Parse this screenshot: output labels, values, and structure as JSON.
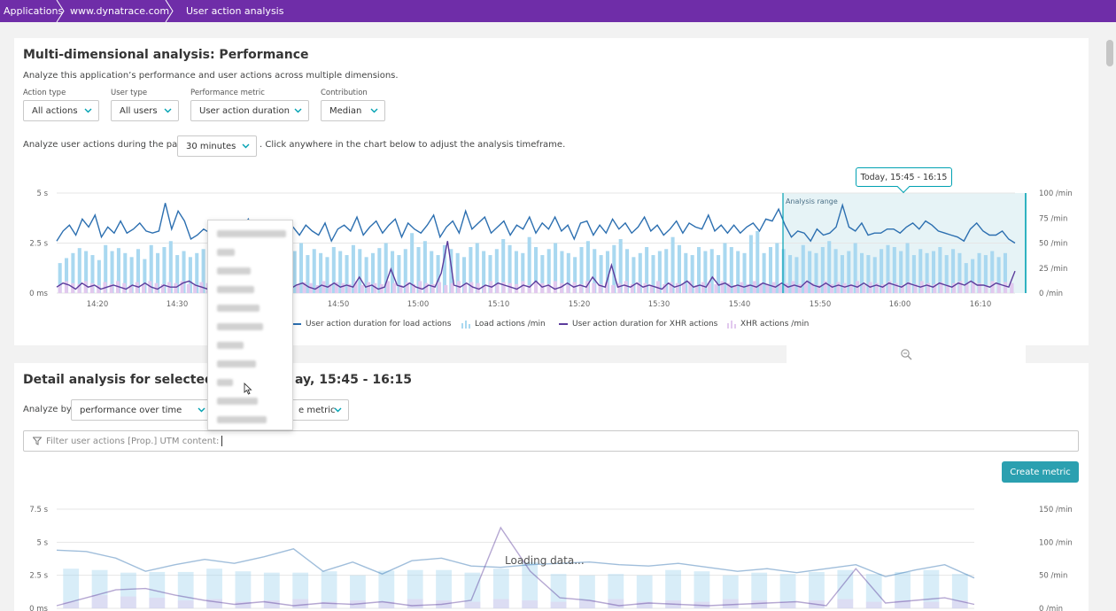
{
  "breadcrumb": [
    "Applications",
    "www.dynatrace.com",
    "User action analysis"
  ],
  "top": {
    "title": "Multi-dimensional analysis: Performance",
    "description": "Analyze this application’s performance and user actions across multiple dimensions.",
    "filters": [
      {
        "label": "Action type",
        "value": "All actions"
      },
      {
        "label": "User type",
        "value": "All users"
      },
      {
        "label": "Performance metric",
        "value": "User action duration"
      },
      {
        "label": "Contribution",
        "value": "Median"
      }
    ],
    "timeframe_prefix": "Analyze user actions during the past",
    "timeframe_value": "30 minutes",
    "timeframe_suffix": ". Click anywhere in the chart below to adjust the analysis timeframe."
  },
  "tooltip": "Today, 15:45 - 16:15",
  "dropdown_item_count": 11,
  "bottom": {
    "title_left": "Detail analysis for selected ti",
    "title_right": "ay, 15:45 - 16:15",
    "analyze_by_label": "Analyze by",
    "analyze_by_value": "performance over time",
    "metric_value": "e metric",
    "filter_text": "Filter user actions  [Prop.] UTM content:",
    "create_metric": "Create metric",
    "loading": "Loading data..."
  },
  "colors": {
    "header": "#6f2da8",
    "load_line": "#2c6fb0",
    "load_bars": "#a9d8f0",
    "xhr_line": "#5c3c9c",
    "xhr_bars": "#e2c9ee",
    "accent": "#00a1b2",
    "button": "#2ba0b0"
  },
  "chart_data": [
    {
      "type": "bar",
      "title": "",
      "ylabel_left": "",
      "y_left_ticks": [
        "5 s",
        "2.5 s",
        "0 ms"
      ],
      "y_right_ticks": [
        "100 /min",
        "75 /min",
        "50 /min",
        "25 /min",
        "0 /min"
      ],
      "x_ticks": [
        "14:20",
        "14:30",
        "14:40",
        "14:50",
        "15:00",
        "15:10",
        "15:20",
        "15:30",
        "15:40",
        "15:50",
        "16:00",
        "16:10"
      ],
      "ylim_left": [
        0,
        5
      ],
      "ylim_right": [
        0,
        100
      ],
      "analysis_range_label": "Analysis range",
      "analysis_range": [
        "15:45",
        "16:15"
      ],
      "legend": [
        "User action duration for load actions",
        "Load actions /min",
        "User action duration for XHR actions",
        "XHR actions /min"
      ],
      "series": [
        {
          "name": "User action duration for load actions",
          "kind": "line",
          "axis": "left",
          "values": [
            2.6,
            3.1,
            3.4,
            2.9,
            3.7,
            3.3,
            3.9,
            2.8,
            3.3,
            3.0,
            3.6,
            3.0,
            3.2,
            3.5,
            3.1,
            3.0,
            3.1,
            4.5,
            3.2,
            4.1,
            3.6,
            2.7,
            2.9,
            3.2,
            3.0,
            3.2,
            3.6,
            2.9,
            3.1,
            3.3,
            3.7,
            2.9,
            3.2,
            3.4,
            3.0,
            3.6,
            3.1,
            3.3,
            2.9,
            3.4,
            3.1,
            2.9,
            3.5,
            2.6,
            3.2,
            3.4,
            3.1,
            3.8,
            2.9,
            3.3,
            3.6,
            3.0,
            3.4,
            3.7,
            2.8,
            3.5,
            3.2,
            3.0,
            3.4,
            3.9,
            2.8,
            3.3,
            3.6,
            3.0,
            4.1,
            3.2,
            3.5,
            3.8,
            3.0,
            3.3,
            3.6,
            2.9,
            3.4,
            3.2,
            3.8,
            3.0,
            3.5,
            3.2,
            3.8,
            3.1,
            3.4,
            2.7,
            3.5,
            3.6,
            2.9,
            3.4,
            3.0,
            3.7,
            3.2,
            3.5,
            3.0,
            3.3,
            3.8,
            3.1,
            3.4,
            2.9,
            3.2,
            3.6,
            3.0,
            3.5,
            3.3,
            3.2,
            3.9,
            3.1,
            3.4,
            3.0,
            3.4,
            3.0,
            3.3,
            3.5,
            3.1,
            3.7,
            3.6,
            4.2,
            3.4,
            2.8,
            3.1,
            3.0,
            2.6,
            3.2,
            2.9,
            3.0,
            3.3,
            4.4,
            3.3,
            3.1,
            3.5,
            2.9,
            3.0,
            3.0,
            3.2,
            3.2,
            3.0,
            3.3,
            3.5,
            3.2,
            3.6,
            3.4,
            3.1,
            3.0,
            2.9,
            2.8,
            2.6,
            3.2,
            3.5,
            3.1,
            2.9,
            2.9,
            3.1,
            2.7,
            2.5
          ]
        },
        {
          "name": "Load actions /min",
          "kind": "bar",
          "axis": "right",
          "values": [
            30,
            35,
            40,
            45,
            42,
            38,
            33,
            48,
            42,
            45,
            40,
            36,
            44,
            34,
            48,
            40,
            46,
            52,
            38,
            42,
            36,
            40,
            44,
            38,
            34,
            42,
            46,
            40,
            38,
            44,
            36,
            48,
            40,
            38,
            45,
            36,
            42,
            50,
            38,
            44,
            40,
            36,
            46,
            42,
            38,
            48,
            44,
            36,
            40,
            45,
            50,
            42,
            38,
            44,
            60,
            46,
            52,
            42,
            38,
            48,
            44,
            40,
            36,
            46,
            50,
            42,
            38,
            44,
            54,
            48,
            42,
            40,
            56,
            46,
            38,
            44,
            50,
            42,
            40,
            36,
            46,
            52,
            44,
            38,
            42,
            48,
            54,
            44,
            36,
            40,
            46,
            38,
            42,
            44,
            56,
            48,
            40,
            38,
            46,
            42,
            44,
            38,
            50,
            46,
            42,
            40,
            58,
            62,
            40,
            46,
            50,
            44,
            38,
            36,
            48,
            42,
            40,
            46,
            52,
            44,
            38,
            42,
            50,
            40,
            38,
            36,
            44,
            48,
            46,
            42,
            50,
            38,
            44,
            40,
            42,
            46,
            38,
            44,
            40,
            30,
            34,
            40,
            38,
            42,
            36,
            40,
            10
          ]
        },
        {
          "name": "User action duration for XHR actions",
          "kind": "line",
          "axis": "left",
          "values": [
            0.3,
            0.5,
            0.4,
            0.2,
            0.5,
            0.3,
            0.4,
            0.2,
            0.3,
            0.4,
            0.3,
            0.2,
            0.4,
            0.3,
            0.5,
            0.3,
            0.2,
            0.4,
            0.3,
            0.3,
            0.5,
            0.6,
            0.4,
            0.3,
            0.2,
            0.6,
            2.6,
            0.5,
            0.3,
            0.4,
            0.3,
            0.2,
            0.4,
            0.3,
            0.3,
            0.5,
            0.3,
            0.2,
            0.4,
            0.5,
            0.3,
            0.2,
            0.4,
            0.3,
            0.5,
            0.3,
            0.4,
            0.3,
            0.8,
            0.3,
            0.4,
            0.2,
            0.3,
            1.2,
            0.4,
            0.3,
            0.5,
            0.3,
            0.2,
            0.4,
            0.3,
            1.0,
            2.6,
            0.4,
            0.3,
            0.5,
            0.3,
            0.2,
            0.4,
            0.3,
            0.5,
            0.4,
            0.3,
            0.2,
            0.4,
            0.3,
            0.6,
            0.3,
            0.4,
            0.2,
            0.3,
            0.5,
            0.3,
            0.4,
            0.3,
            0.8,
            0.4,
            0.3,
            1.4,
            0.3,
            0.4,
            0.3,
            0.5,
            0.3,
            0.4,
            0.3,
            0.2,
            0.5,
            0.3,
            0.4,
            0.6,
            0.3,
            0.4,
            0.3,
            0.8,
            0.4,
            0.5,
            0.3,
            0.4,
            0.3,
            0.4,
            0.3,
            0.5,
            0.4,
            0.3,
            0.5,
            0.3,
            0.4,
            0.3,
            0.6,
            0.4,
            0.3,
            0.5,
            0.3,
            0.4,
            0.3,
            0.4,
            0.3,
            0.5,
            0.3,
            0.4,
            0.3,
            0.5,
            0.4,
            0.3,
            0.5,
            0.4,
            0.3,
            0.4,
            0.3,
            0.5,
            0.4,
            0.3,
            0.5,
            0.4,
            0.6,
            0.4,
            0.4,
            0.3,
            0.5,
            0.4,
            0.3,
            1.1
          ]
        },
        {
          "name": "XHR actions /min",
          "kind": "bar",
          "axis": "right",
          "values": [
            8,
            12,
            10,
            9,
            12,
            10,
            8,
            11,
            9,
            12,
            10,
            8,
            11,
            9,
            12,
            10,
            9,
            11,
            10,
            12,
            9,
            8,
            11,
            10,
            9,
            12,
            10,
            8,
            11,
            9,
            12,
            10,
            9,
            11,
            8,
            10,
            12,
            9,
            11,
            10,
            8,
            12,
            9,
            11,
            10,
            9,
            12,
            8,
            11,
            10,
            9,
            12,
            10,
            8,
            11,
            9,
            12,
            10,
            9,
            11,
            8,
            10,
            12,
            9,
            11,
            10,
            8,
            12,
            9,
            11,
            10,
            9,
            12,
            8,
            11,
            10,
            9,
            12,
            10,
            8,
            11,
            9,
            12,
            10,
            9,
            11,
            8,
            10,
            12,
            9,
            11,
            10,
            8,
            12,
            9,
            11,
            10,
            9,
            12,
            8,
            11,
            10,
            9,
            12,
            10,
            8,
            11,
            9,
            12,
            10,
            9,
            11,
            8,
            10,
            12,
            9,
            11,
            10,
            8,
            12,
            9,
            11,
            10,
            9,
            12,
            8,
            11,
            10,
            9,
            12,
            10,
            8,
            11,
            9,
            12,
            10,
            9,
            11,
            8,
            10,
            12,
            9,
            11,
            10,
            8,
            12,
            9,
            11,
            10
          ]
        }
      ]
    },
    {
      "type": "bar",
      "title": "",
      "y_left_ticks": [
        "7.5 s",
        "5 s",
        "2.5 s",
        "0 ms"
      ],
      "y_right_ticks": [
        "150 /min",
        "100 /min",
        "50 /min",
        "0 /min"
      ],
      "ylim_left": [
        0,
        7.5
      ],
      "ylim_right": [
        0,
        150
      ],
      "series": [
        {
          "name": "load_duration",
          "kind": "line",
          "axis": "left",
          "values": [
            4.4,
            4.3,
            3.8,
            2.8,
            3.3,
            3.7,
            3.4,
            3.9,
            4.5,
            2.8,
            3.5,
            2.6,
            3.6,
            3.8,
            3.2,
            3.1,
            3.3,
            3.4,
            3.5,
            3.3,
            3.2,
            3.4,
            3.1,
            2.8,
            3.0,
            2.7,
            3.0,
            3.3,
            2.4,
            2.9,
            3.3,
            2.3
          ]
        },
        {
          "name": "load_bars",
          "kind": "bar",
          "axis": "right",
          "values": [
            60,
            58,
            54,
            55,
            55,
            60,
            56,
            54,
            54,
            56,
            50,
            57,
            58,
            58,
            54,
            60,
            70,
            52,
            50,
            52,
            50,
            58,
            56,
            50,
            54,
            52,
            55,
            58,
            52,
            55,
            58,
            52
          ]
        },
        {
          "name": "xhr_duration",
          "kind": "line",
          "axis": "left",
          "values": [
            0.2,
            0.8,
            1.4,
            1.5,
            1.0,
            0.6,
            0.3,
            0.5,
            0.2,
            0.4,
            0.3,
            0.5,
            0.2,
            0.3,
            0.6,
            6.1,
            2.8,
            0.8,
            0.6,
            0.2,
            0.4,
            0.3,
            0.2,
            0.3,
            0.4,
            0.5,
            0.2,
            3.0,
            0.4,
            0.6,
            0.8,
            0.3
          ]
        },
        {
          "name": "xhr_bars",
          "kind": "bar",
          "axis": "right",
          "values": [
            10,
            20,
            18,
            16,
            12,
            14,
            10,
            12,
            14,
            10,
            12,
            10,
            14,
            12,
            10,
            14,
            12,
            10,
            12,
            14,
            10,
            12,
            10,
            14,
            12,
            10,
            12,
            14,
            10,
            12,
            10,
            12
          ]
        }
      ]
    }
  ]
}
